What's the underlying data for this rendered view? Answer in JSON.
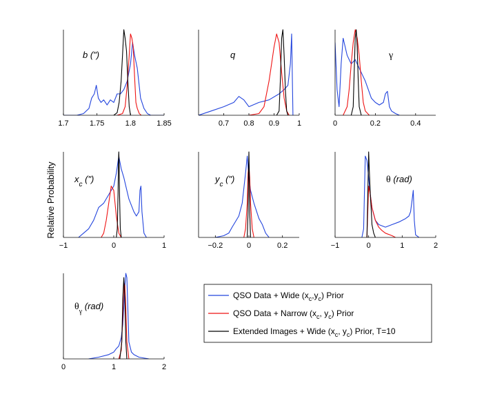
{
  "figure": {
    "ylabel": "Relative Probability"
  },
  "legend": {
    "entries": [
      {
        "series": "wide",
        "label": "QSO Data + Wide (x_c,y_c) Prior",
        "parts": [
          "QSO Data + Wide (x",
          "c",
          ",y",
          "c",
          ") Prior"
        ],
        "color": "#2244dd"
      },
      {
        "series": "narrow",
        "label": "QSO Data + Narrow (x_c, y_c) Prior",
        "parts": [
          "QSO Data + Narrow (x",
          "c",
          ", y",
          "c",
          ") Prior"
        ],
        "color": "#ee1111"
      },
      {
        "series": "extended",
        "label": "Extended Images + Wide (x_c, y_c) Prior, T=10",
        "parts": [
          "Extended Images + Wide (x",
          "c",
          ", y",
          "c",
          ") Prior, T=10"
        ],
        "color": "#000000"
      }
    ]
  },
  "chart_data": [
    {
      "type": "line",
      "title": "b (\")",
      "label_main": "b (\")",
      "label_sub": "",
      "label_tail": "",
      "label_style": "italic",
      "xlabel": "",
      "ylabel": "",
      "xlim": [
        1.7,
        1.85
      ],
      "ylim": [
        0,
        1
      ],
      "grid": false,
      "xticks": [
        1.7,
        1.75,
        1.8,
        1.85
      ],
      "xtick_labels": [
        "1.7",
        "1.75",
        "1.8",
        "1.85"
      ],
      "series": [
        {
          "name": "QSO Data + Wide (x_c,y_c) Prior",
          "key": "wide",
          "color": "#2244dd",
          "x": [
            1.7,
            1.72,
            1.73,
            1.738,
            1.742,
            1.746,
            1.749,
            1.752,
            1.756,
            1.76,
            1.765,
            1.77,
            1.775,
            1.78,
            1.785,
            1.79,
            1.795,
            1.8,
            1.803,
            1.806,
            1.81,
            1.815,
            1.82,
            1.825,
            1.83,
            1.85
          ],
          "y": [
            0.0,
            0.0,
            0.02,
            0.08,
            0.2,
            0.25,
            0.35,
            0.2,
            0.15,
            0.18,
            0.12,
            0.18,
            0.15,
            0.25,
            0.25,
            0.3,
            0.4,
            0.6,
            0.85,
            0.7,
            0.55,
            0.2,
            0.08,
            0.02,
            0.0,
            0.0
          ]
        },
        {
          "name": "QSO Data + Narrow (x_c, y_c) Prior",
          "key": "narrow",
          "color": "#ee1111",
          "x": [
            1.78,
            1.788,
            1.792,
            1.795,
            1.798,
            1.8,
            1.802,
            1.804,
            1.806,
            1.808,
            1.81,
            1.813,
            1.816
          ],
          "y": [
            0.0,
            0.02,
            0.1,
            0.35,
            0.7,
            0.95,
            0.9,
            0.8,
            0.45,
            0.15,
            0.08,
            0.02,
            0.0
          ]
        },
        {
          "name": "Extended Images + Wide (x_c, y_c) Prior, T=10",
          "key": "extended",
          "color": "#000000",
          "x": [
            1.775,
            1.78,
            1.783,
            1.786,
            1.788,
            1.79,
            1.792,
            1.794,
            1.796,
            1.798,
            1.8
          ],
          "y": [
            0.0,
            0.03,
            0.15,
            0.4,
            0.7,
            1.0,
            0.9,
            0.75,
            0.4,
            0.1,
            0.0
          ]
        }
      ]
    },
    {
      "type": "line",
      "title": "q",
      "label_main": "q",
      "label_sub": "",
      "label_tail": "",
      "label_style": "italic",
      "xlabel": "",
      "ylabel": "",
      "xlim": [
        0.6,
        1.0
      ],
      "ylim": [
        0,
        1
      ],
      "grid": false,
      "xticks": [
        0.7,
        0.8,
        0.9,
        1.0
      ],
      "xtick_labels": [
        "0.7",
        "0.8",
        "0.9",
        "1"
      ],
      "series": [
        {
          "name": "QSO Data + Wide (x_c,y_c) Prior",
          "key": "wide",
          "color": "#2244dd",
          "x": [
            0.6,
            0.65,
            0.7,
            0.74,
            0.76,
            0.78,
            0.8,
            0.84,
            0.88,
            0.92,
            0.94,
            0.955,
            0.965,
            0.97,
            0.975
          ],
          "y": [
            0.0,
            0.05,
            0.1,
            0.15,
            0.22,
            0.18,
            0.1,
            0.15,
            0.18,
            0.25,
            0.3,
            0.35,
            0.6,
            0.95,
            0.0
          ]
        },
        {
          "name": "QSO Data + Narrow (x_c, y_c) Prior",
          "key": "narrow",
          "color": "#ee1111",
          "x": [
            0.8,
            0.84,
            0.86,
            0.88,
            0.89,
            0.9,
            0.91,
            0.92,
            0.93,
            0.94,
            0.95,
            0.96
          ],
          "y": [
            0.0,
            0.02,
            0.1,
            0.4,
            0.6,
            0.8,
            0.95,
            0.85,
            0.5,
            0.2,
            0.05,
            0.0
          ]
        },
        {
          "name": "Extended Images + Wide (x_c, y_c) Prior, T=10",
          "key": "extended",
          "color": "#000000",
          "x": [
            0.91,
            0.92,
            0.925,
            0.93,
            0.935,
            0.94,
            0.945,
            0.95,
            0.955
          ],
          "y": [
            0.0,
            0.05,
            0.4,
            0.9,
            1.0,
            0.7,
            0.3,
            0.05,
            0.0
          ]
        }
      ]
    },
    {
      "type": "line",
      "title": "γ",
      "label_main": "γ",
      "label_sub": "",
      "label_tail": "",
      "label_style": "upright",
      "xlabel": "",
      "ylabel": "",
      "xlim": [
        0,
        0.5
      ],
      "ylim": [
        0,
        1
      ],
      "grid": false,
      "xticks": [
        0,
        0.2,
        0.4
      ],
      "xtick_labels": [
        "0",
        "0.2",
        "0.4"
      ],
      "series": [
        {
          "name": "QSO Data + Wide (x_c,y_c) Prior",
          "key": "wide",
          "color": "#2244dd",
          "x": [
            0.0,
            0.01,
            0.02,
            0.03,
            0.04,
            0.06,
            0.08,
            0.1,
            0.12,
            0.15,
            0.18,
            0.2,
            0.22,
            0.24,
            0.25,
            0.26,
            0.27,
            0.28,
            0.3,
            0.32
          ],
          "y": [
            0.85,
            0.3,
            0.1,
            0.6,
            0.9,
            0.7,
            0.6,
            0.65,
            0.55,
            0.4,
            0.2,
            0.15,
            0.12,
            0.15,
            0.25,
            0.28,
            0.1,
            0.05,
            0.02,
            0.0
          ]
        },
        {
          "name": "QSO Data + Narrow (x_c, y_c) Prior",
          "key": "narrow",
          "color": "#ee1111",
          "x": [
            0.04,
            0.06,
            0.07,
            0.08,
            0.09,
            0.1,
            0.11,
            0.12,
            0.13,
            0.14,
            0.15,
            0.17
          ],
          "y": [
            0.0,
            0.1,
            0.3,
            0.6,
            0.85,
            1.0,
            0.9,
            0.7,
            0.4,
            0.15,
            0.05,
            0.0
          ]
        },
        {
          "name": "Extended Images + Wide (x_c, y_c) Prior, T=10",
          "key": "extended",
          "color": "#000000",
          "x": [
            0.08,
            0.09,
            0.095,
            0.1,
            0.105,
            0.11,
            0.115,
            0.12,
            0.13
          ],
          "y": [
            0.0,
            0.1,
            0.5,
            0.9,
            1.0,
            0.8,
            0.4,
            0.1,
            0.0
          ]
        }
      ]
    },
    {
      "type": "line",
      "title": "x_c (\")",
      "label_main": "x",
      "label_sub": "c",
      "label_tail": " (\")",
      "label_style": "italic",
      "xlabel": "",
      "ylabel": "Relative Probability",
      "xlim": [
        -1,
        1
      ],
      "ylim": [
        0,
        1
      ],
      "grid": false,
      "xticks": [
        -1,
        0,
        1
      ],
      "xtick_labels": [
        "−1",
        "0",
        "1"
      ],
      "series": [
        {
          "name": "QSO Data + Wide (x_c,y_c) Prior",
          "key": "wide",
          "color": "#2244dd",
          "x": [
            -0.7,
            -0.6,
            -0.5,
            -0.4,
            -0.3,
            -0.2,
            -0.1,
            0.0,
            0.05,
            0.1,
            0.15,
            0.2,
            0.3,
            0.4,
            0.45,
            0.5,
            0.52,
            0.54,
            0.56,
            0.6,
            0.65
          ],
          "y": [
            0.0,
            0.05,
            0.1,
            0.2,
            0.35,
            0.4,
            0.5,
            0.6,
            0.75,
            0.95,
            0.8,
            0.7,
            0.45,
            0.3,
            0.25,
            0.3,
            0.55,
            0.6,
            0.3,
            0.05,
            0.0
          ]
        },
        {
          "name": "QSO Data + Narrow (x_c, y_c) Prior",
          "key": "narrow",
          "color": "#ee1111",
          "x": [
            -0.25,
            -0.2,
            -0.15,
            -0.1,
            -0.05,
            0.0,
            0.05,
            0.1,
            0.15
          ],
          "y": [
            0.0,
            0.05,
            0.2,
            0.4,
            0.6,
            0.55,
            0.25,
            0.05,
            0.0
          ]
        },
        {
          "name": "Extended Images + Wide (x_c, y_c) Prior, T=10",
          "key": "extended",
          "color": "#000000",
          "x": [
            0.05,
            0.07,
            0.085,
            0.095,
            0.1,
            0.105,
            0.115,
            0.13,
            0.15
          ],
          "y": [
            0.0,
            0.1,
            0.5,
            0.9,
            1.0,
            0.9,
            0.5,
            0.1,
            0.0
          ]
        }
      ]
    },
    {
      "type": "line",
      "title": "y_c (\")",
      "label_main": "y",
      "label_sub": "c",
      "label_tail": " (\")",
      "label_style": "italic",
      "xlabel": "",
      "ylabel": "",
      "xlim": [
        -0.3,
        0.3
      ],
      "ylim": [
        0,
        1
      ],
      "grid": false,
      "xticks": [
        -0.2,
        0,
        0.2
      ],
      "xtick_labels": [
        "−0.2",
        "0",
        "0.2"
      ],
      "series": [
        {
          "name": "QSO Data + Wide (x_c,y_c) Prior",
          "key": "wide",
          "color": "#2244dd",
          "x": [
            -0.2,
            -0.15,
            -0.12,
            -0.1,
            -0.06,
            -0.04,
            -0.02,
            -0.01,
            0.0,
            0.01,
            0.03,
            0.06,
            0.08,
            0.1,
            0.12
          ],
          "y": [
            0.0,
            0.02,
            0.05,
            0.12,
            0.25,
            0.4,
            0.75,
            0.95,
            0.7,
            0.55,
            0.4,
            0.22,
            0.15,
            0.05,
            0.0
          ]
        },
        {
          "name": "QSO Data + Narrow (x_c, y_c) Prior",
          "key": "narrow",
          "color": "#ee1111",
          "x": [
            -0.03,
            -0.02,
            -0.01,
            -0.005,
            0.0,
            0.005,
            0.01,
            0.02,
            0.03
          ],
          "y": [
            0.0,
            0.1,
            0.4,
            0.75,
            0.85,
            0.7,
            0.4,
            0.1,
            0.0
          ]
        },
        {
          "name": "Extended Images + Wide (x_c, y_c) Prior, T=10",
          "key": "extended",
          "color": "#000000",
          "x": [
            -0.01,
            -0.005,
            -0.002,
            0.0,
            0.002,
            0.005,
            0.01
          ],
          "y": [
            0.0,
            0.3,
            0.8,
            1.0,
            0.8,
            0.3,
            0.0
          ]
        }
      ]
    },
    {
      "type": "line",
      "title": "θ (rad)",
      "label_main": "θ",
      "label_sub": "",
      "label_tail": " (rad)",
      "label_style": "theta",
      "xlabel": "",
      "ylabel": "",
      "xlim": [
        -1,
        2
      ],
      "ylim": [
        0,
        1
      ],
      "grid": false,
      "xticks": [
        -1,
        0,
        1,
        2
      ],
      "xtick_labels": [
        "−1",
        "0",
        "1",
        "2"
      ],
      "series": [
        {
          "name": "QSO Data + Wide (x_c,y_c) Prior",
          "key": "wide",
          "color": "#2244dd",
          "x": [
            -0.2,
            -0.15,
            -0.1,
            -0.05,
            0.0,
            0.05,
            0.1,
            0.2,
            0.3,
            0.5,
            0.7,
            0.9,
            1.1,
            1.2,
            1.25,
            1.3,
            1.33,
            1.36,
            1.4,
            1.5
          ],
          "y": [
            0.0,
            0.1,
            0.95,
            0.9,
            0.7,
            0.5,
            0.35,
            0.2,
            0.15,
            0.12,
            0.15,
            0.18,
            0.22,
            0.25,
            0.3,
            0.45,
            0.55,
            0.2,
            0.03,
            0.0
          ]
        },
        {
          "name": "QSO Data + Narrow (x_c, y_c) Prior",
          "key": "narrow",
          "color": "#ee1111",
          "x": [
            -0.05,
            0.0,
            0.05,
            0.1,
            0.2,
            0.3,
            0.4,
            0.5,
            0.7,
            0.8
          ],
          "y": [
            0.0,
            0.6,
            0.5,
            0.35,
            0.2,
            0.12,
            0.08,
            0.05,
            0.02,
            0.0
          ]
        },
        {
          "name": "Extended Images + Wide (x_c, y_c) Prior, T=10",
          "key": "extended",
          "color": "#000000",
          "x": [
            -0.05,
            -0.02,
            0.0,
            0.02,
            0.05,
            0.08,
            0.1,
            0.15,
            0.2
          ],
          "y": [
            0.0,
            0.6,
            1.0,
            0.8,
            0.5,
            0.3,
            0.15,
            0.05,
            0.0
          ]
        }
      ]
    },
    {
      "type": "line",
      "title": "θ_γ (rad)",
      "label_main": "θ",
      "label_sub": "γ",
      "label_tail": " (rad)",
      "label_style": "theta",
      "xlabel": "",
      "ylabel": "",
      "xlim": [
        0,
        2
      ],
      "ylim": [
        0,
        1
      ],
      "grid": false,
      "xticks": [
        0,
        1,
        2
      ],
      "xtick_labels": [
        "0",
        "1",
        "2"
      ],
      "series": [
        {
          "name": "QSO Data + Wide (x_c,y_c) Prior",
          "key": "wide",
          "color": "#2244dd",
          "x": [
            0.5,
            0.7,
            0.9,
            1.0,
            1.05,
            1.1,
            1.15,
            1.18,
            1.2,
            1.22,
            1.24,
            1.26,
            1.28,
            1.3,
            1.35,
            1.4,
            1.5,
            1.7
          ],
          "y": [
            0.0,
            0.02,
            0.05,
            0.08,
            0.12,
            0.15,
            0.25,
            0.4,
            0.6,
            0.85,
            1.0,
            0.95,
            0.6,
            0.2,
            0.08,
            0.05,
            0.02,
            0.0
          ]
        },
        {
          "name": "QSO Data + Narrow (x_c, y_c) Prior",
          "key": "narrow",
          "color": "#ee1111",
          "x": [
            1.1,
            1.15,
            1.18,
            1.2,
            1.22,
            1.24,
            1.26,
            1.3
          ],
          "y": [
            0.0,
            0.1,
            0.5,
            0.9,
            0.85,
            0.6,
            0.2,
            0.0
          ]
        },
        {
          "name": "Extended Images + Wide (x_c, y_c) Prior, T=10",
          "key": "extended",
          "color": "#000000",
          "x": [
            1.12,
            1.16,
            1.18,
            1.2,
            1.22,
            1.24,
            1.26
          ],
          "y": [
            0.0,
            0.2,
            0.7,
            0.95,
            0.7,
            0.2,
            0.0
          ]
        }
      ]
    }
  ]
}
